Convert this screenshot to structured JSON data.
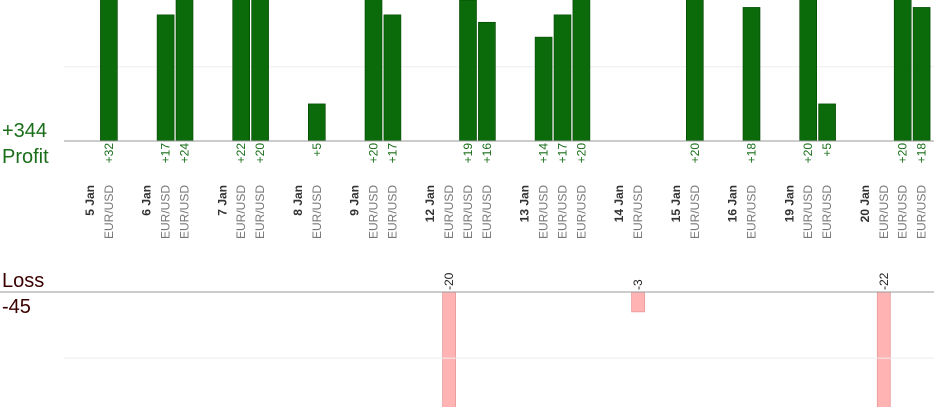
{
  "chart_data": {
    "type": "bar",
    "profit_label": "Profit",
    "profit_total": 344,
    "profit_total_label": "+344",
    "loss_label": "Loss",
    "loss_total": -45,
    "loss_total_label": "-45",
    "profit_color": "#0b6b0b",
    "loss_color": "#ffb3b3",
    "profit_ylim": [
      0,
      19
    ],
    "loss_ylim": [
      0,
      -17.4
    ],
    "profit_grid": [
      10
    ],
    "loss_grid": [
      -10
    ],
    "days": [
      {
        "date": "5 Jan",
        "trades": [
          {
            "symbol": "EUR/USD",
            "value": 32,
            "value_label": "+32"
          }
        ]
      },
      {
        "date": "6 Jan",
        "trades": [
          {
            "symbol": "EUR/USD",
            "value": 17,
            "value_label": "+17"
          },
          {
            "symbol": "EUR/USD",
            "value": 24,
            "value_label": "+24"
          }
        ]
      },
      {
        "date": "7 Jan",
        "trades": [
          {
            "symbol": "EUR/USD",
            "value": 22,
            "value_label": "+22"
          },
          {
            "symbol": "EUR/USD",
            "value": 20,
            "value_label": "+20"
          }
        ]
      },
      {
        "date": "8 Jan",
        "trades": [
          {
            "symbol": "EUR/USD",
            "value": 5,
            "value_label": "+5"
          }
        ]
      },
      {
        "date": "9 Jan",
        "trades": [
          {
            "symbol": "EUR/USD",
            "value": 20,
            "value_label": "+20"
          },
          {
            "symbol": "EUR/USD",
            "value": 17,
            "value_label": "+17"
          }
        ]
      },
      {
        "date": "12 Jan",
        "trades": [
          {
            "symbol": "EUR/USD",
            "value": -20,
            "value_label": "-20"
          },
          {
            "symbol": "EUR/USD",
            "value": 19,
            "value_label": "+19"
          },
          {
            "symbol": "EUR/USD",
            "value": 16,
            "value_label": "+16"
          }
        ]
      },
      {
        "date": "13 Jan",
        "trades": [
          {
            "symbol": "EUR/USD",
            "value": 14,
            "value_label": "+14"
          },
          {
            "symbol": "EUR/USD",
            "value": 17,
            "value_label": "+17"
          },
          {
            "symbol": "EUR/USD",
            "value": 20,
            "value_label": "+20"
          }
        ]
      },
      {
        "date": "14 Jan",
        "trades": [
          {
            "symbol": "EUR/USD",
            "value": -3,
            "value_label": "-3"
          }
        ]
      },
      {
        "date": "15 Jan",
        "trades": [
          {
            "symbol": "EUR/USD",
            "value": 20,
            "value_label": "+20"
          }
        ]
      },
      {
        "date": "16 Jan",
        "trades": [
          {
            "symbol": "EUR/USD",
            "value": 18,
            "value_label": "+18"
          }
        ]
      },
      {
        "date": "19 Jan",
        "trades": [
          {
            "symbol": "EUR/USD",
            "value": 20,
            "value_label": "+20"
          },
          {
            "symbol": "EUR/USD",
            "value": 5,
            "value_label": "+5"
          }
        ]
      },
      {
        "date": "20 Jan",
        "trades": [
          {
            "symbol": "EUR/USD",
            "value": -22,
            "value_label": "-22"
          },
          {
            "symbol": "EUR/USD",
            "value": 20,
            "value_label": "+20"
          },
          {
            "symbol": "EUR/USD",
            "value": 18,
            "value_label": "+18"
          }
        ]
      }
    ]
  }
}
